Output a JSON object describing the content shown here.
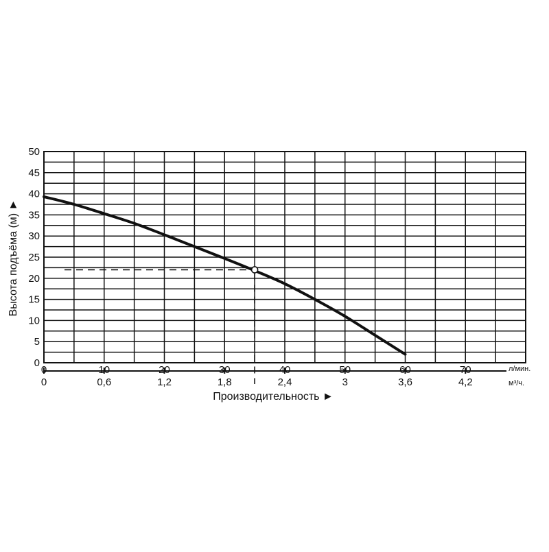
{
  "chart_data": {
    "type": "line",
    "xlabel": "Производительность ►",
    "ylabel": "Высота подъёма (м) ►",
    "x_unit": "л/мин.",
    "x2_unit": "м³/ч.",
    "xlim": [
      0,
      80
    ],
    "ylim": [
      0,
      50
    ],
    "grid": true,
    "x_ticks": [
      "0",
      "10",
      "20",
      "30",
      "40",
      "50",
      "60",
      "70"
    ],
    "x2_ticks": [
      "0",
      "0,6",
      "1,2",
      "1,8",
      "2,4",
      "3",
      "3,6",
      "4,2"
    ],
    "y_ticks": [
      "0",
      "5",
      "10",
      "15",
      "20",
      "25",
      "30",
      "35",
      "40",
      "45",
      "50"
    ],
    "series": [
      {
        "x": [
          0,
          5,
          10,
          15,
          20,
          25,
          30,
          35,
          40,
          45,
          50,
          55,
          60
        ],
        "values": [
          39.3,
          37.5,
          35.3,
          33,
          30.3,
          27.5,
          24.7,
          21.8,
          18.7,
          15,
          11,
          6.5,
          2
        ]
      }
    ],
    "operating_point": {
      "x": 35,
      "y": 22
    },
    "colors": {
      "line": "#111111",
      "grid": "#111111"
    }
  }
}
